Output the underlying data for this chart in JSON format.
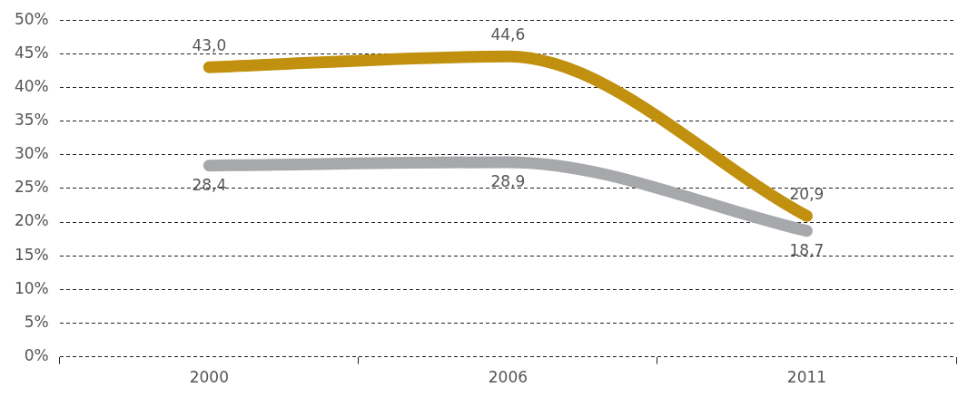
{
  "chart_data": {
    "type": "line",
    "categories": [
      "2000",
      "2006",
      "2011"
    ],
    "series": [
      {
        "color": "#c0900e",
        "values": [
          43.0,
          44.6,
          20.9
        ],
        "value_labels": [
          "43,0",
          "44,6",
          "20,9"
        ]
      },
      {
        "color": "#a7a8ab",
        "values": [
          28.4,
          28.9,
          18.7
        ],
        "value_labels": [
          "28,4",
          "28,9",
          "18,7"
        ]
      }
    ],
    "ylim": [
      0,
      50
    ],
    "yticks": [
      {
        "value": 0,
        "label": "0%"
      },
      {
        "value": 5,
        "label": "5%"
      },
      {
        "value": 10,
        "label": "10%"
      },
      {
        "value": 15,
        "label": "15%"
      },
      {
        "value": 20,
        "label": "20%"
      },
      {
        "value": 25,
        "label": "25%"
      },
      {
        "value": 30,
        "label": "30%"
      },
      {
        "value": 35,
        "label": "35%"
      },
      {
        "value": 40,
        "label": "40%"
      },
      {
        "value": 45,
        "label": "45%"
      },
      {
        "value": 50,
        "label": "50%"
      }
    ],
    "grid": "y",
    "legend": false,
    "marker": "none",
    "line_style": "solid"
  }
}
